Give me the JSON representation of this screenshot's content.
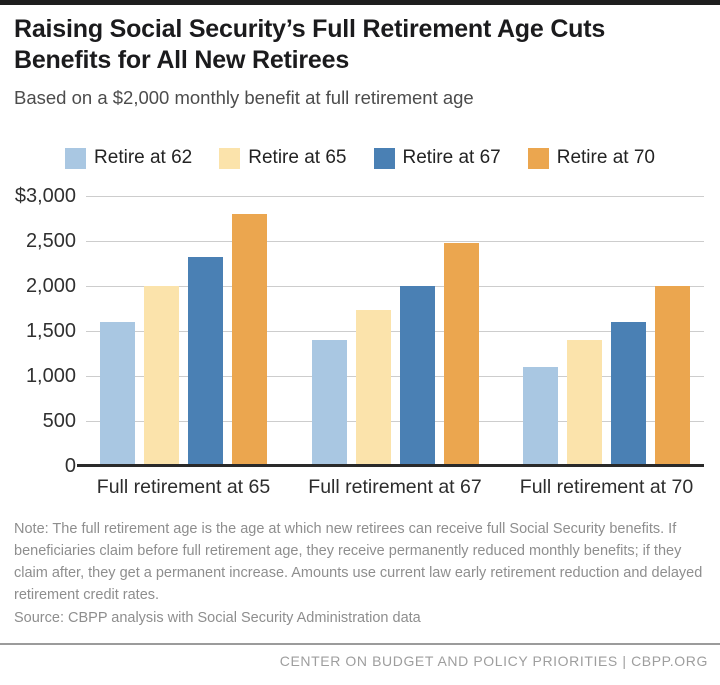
{
  "header": {
    "title": "Raising Social Security’s Full Retirement Age Cuts Benefits for All New Retirees",
    "subtitle": "Based on a $2,000 monthly benefit at full retirement age"
  },
  "chart_data": {
    "type": "bar",
    "title": "Raising Social Security’s Full Retirement Age Cuts Benefits for All New Retirees",
    "subtitle": "Based on a $2,000 monthly benefit at full retirement age",
    "categories": [
      "Full retirement at 65",
      "Full retirement at 67",
      "Full retirement at 70"
    ],
    "series": [
      {
        "name": "Retire at 62",
        "color": "#a9c7e2",
        "values": [
          1600,
          1400,
          1100
        ]
      },
      {
        "name": "Retire at 65",
        "color": "#fbe3ab",
        "values": [
          2000,
          1733,
          1400
        ]
      },
      {
        "name": "Retire at 67",
        "color": "#4a80b4",
        "values": [
          2320,
          2000,
          1600
        ]
      },
      {
        "name": "Retire at 70",
        "color": "#eba64f",
        "values": [
          2800,
          2480,
          2000
        ]
      }
    ],
    "ylim": [
      0,
      3000
    ],
    "ytick_values": [
      3000,
      2500,
      2000,
      1500,
      1000,
      500,
      0
    ],
    "ytick_labels": [
      "$3,000",
      "2,500",
      "2,000",
      "1,500",
      "1,000",
      "500",
      "0"
    ],
    "grid": true,
    "legend_position": "top",
    "gridline_color": "#cdcdcd",
    "axis_color": "#2a2a2a"
  },
  "note": {
    "text": "Note: The full retirement age is the age at which new retirees can receive full Social Security benefits. If beneficiaries claim before full retirement age, they receive permanently reduced monthly benefits; if they claim after, they get a permanent increase. Amounts use current law early retirement reduction and delayed retirement credit rates."
  },
  "source": {
    "text": "Source: CBPP analysis with Social Security Administration data"
  },
  "footer": {
    "text": "CENTER ON BUDGET AND POLICY PRIORITIES | CBPP.ORG"
  }
}
